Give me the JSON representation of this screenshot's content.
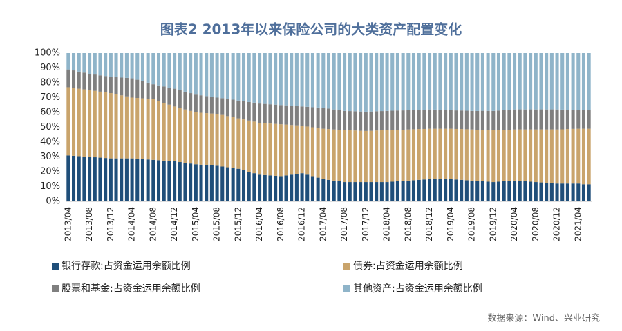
{
  "chart_data": {
    "type": "stacked_bar",
    "title": "图表2  2013年以来保险公司的大类资产配置变化",
    "source": "数据来源：Wind、兴业研究",
    "categories": [
      "2013/04",
      null,
      null,
      null,
      "2013/08",
      null,
      null,
      null,
      "2013/12",
      null,
      null,
      null,
      "2014/04",
      null,
      null,
      null,
      "2014/08",
      null,
      null,
      null,
      "2014/12",
      null,
      null,
      null,
      "2015/04",
      null,
      null,
      null,
      "2015/08",
      null,
      null,
      null,
      "2015/12",
      null,
      null,
      null,
      "2016/04",
      null,
      null,
      null,
      "2016/08",
      null,
      null,
      null,
      "2016/12",
      null,
      null,
      null,
      "2017/04",
      null,
      null,
      null,
      "2017/08",
      null,
      null,
      null,
      "2017/12",
      null,
      null,
      null,
      "2018/04",
      null,
      null,
      null,
      "2018/08",
      null,
      null,
      null,
      "2018/12",
      null,
      null,
      null,
      "2019/04",
      null,
      null,
      null,
      "2019/08",
      null,
      null,
      null,
      "2019/12",
      null,
      null,
      null,
      "2020/04",
      null,
      null,
      null,
      "2020/08",
      null,
      null,
      null,
      "2020/12",
      null,
      null,
      null,
      "2021/04",
      null,
      null
    ],
    "series": [
      {
        "name": "银行存款:占资金运用余额比例",
        "color": "#1f4e79",
        "values": [
          31,
          30.75,
          30.5,
          30.25,
          30,
          29.75,
          29.5,
          29.25,
          29,
          29,
          29,
          29,
          29,
          28.75,
          28.5,
          28.25,
          28,
          27.75,
          27.5,
          27.25,
          27,
          26.5,
          26,
          25.5,
          25,
          24.75,
          24.5,
          24.25,
          24,
          23.5,
          23,
          22.5,
          22,
          21,
          20,
          19,
          18,
          17.75,
          17.5,
          17.25,
          17,
          17.5,
          18,
          18.5,
          19,
          18,
          17,
          16,
          15,
          14.5,
          14,
          13.5,
          13,
          13,
          13,
          13,
          13,
          13,
          13,
          13,
          13,
          13.25,
          13.5,
          13.75,
          14,
          14.25,
          14.5,
          14.75,
          15,
          15,
          15,
          15,
          15,
          14.75,
          14.5,
          14.25,
          14,
          13.75,
          13.5,
          13.25,
          13,
          13.25,
          13.5,
          13.75,
          14,
          13.75,
          13.5,
          13.25,
          13,
          12.75,
          12.5,
          12.25,
          12,
          12,
          12,
          12,
          12,
          11.5,
          11.5
        ]
      },
      {
        "name": "债券:占资金运用余额比例",
        "color": "#c9a46c",
        "values": [
          46,
          45.8,
          45.5,
          45.3,
          45,
          44.8,
          44.5,
          44.3,
          44,
          43.3,
          42.5,
          41.8,
          41,
          41,
          41,
          41,
          41,
          40,
          39,
          38,
          37,
          36.5,
          36,
          35.5,
          35,
          35,
          35,
          35,
          35,
          34.8,
          34.5,
          34.3,
          34,
          34.3,
          34.5,
          34.8,
          35,
          35,
          35,
          35,
          35,
          34.3,
          33.5,
          32.8,
          32,
          32.5,
          33,
          33.5,
          34,
          34.3,
          34.5,
          34.8,
          35,
          34.9,
          34.8,
          34.6,
          34.5,
          34.6,
          34.8,
          34.9,
          35,
          34.9,
          34.8,
          34.6,
          34.5,
          34.4,
          34.3,
          34.1,
          34,
          34,
          34,
          34,
          34,
          34.1,
          34.3,
          34.4,
          34.5,
          34.6,
          34.8,
          34.9,
          35,
          34.9,
          34.8,
          34.6,
          34.5,
          34.8,
          35,
          35.3,
          35.5,
          35.8,
          36,
          36.3,
          36.5,
          36.6,
          36.8,
          36.9,
          37,
          37.5,
          37.5
        ]
      },
      {
        "name": "股票和基金:占资金运用余额比例",
        "color": "#7f7f7f",
        "values": [
          12,
          11.8,
          11.5,
          11.3,
          11,
          11,
          11,
          11,
          11,
          11.5,
          12,
          12.5,
          13,
          12.3,
          11.5,
          10.8,
          10,
          10.5,
          11,
          11.5,
          12,
          12,
          12,
          12,
          12,
          11.8,
          11.5,
          11.3,
          11,
          11.3,
          11.5,
          11.8,
          12,
          12.3,
          12.5,
          12.8,
          13,
          13,
          13,
          13,
          13,
          13,
          13,
          13,
          13,
          13.3,
          13.5,
          13.8,
          14,
          13.8,
          13.5,
          13.3,
          13,
          13,
          13,
          13,
          13,
          13,
          13,
          13,
          13,
          13,
          13,
          13,
          13,
          13,
          13,
          13,
          13,
          12.9,
          12.8,
          12.6,
          12.5,
          12.5,
          12.5,
          12.5,
          12.5,
          12.6,
          12.8,
          12.9,
          13,
          13.1,
          13.3,
          13.4,
          13.5,
          13.5,
          13.5,
          13.5,
          13.5,
          13.5,
          13.5,
          13.5,
          13.5,
          13.3,
          13,
          12.8,
          12.5,
          12.5,
          12.5
        ]
      },
      {
        "name": "其他资产:占资金运用余额比例",
        "color": "#8fb4c9",
        "values": [
          11,
          11.65,
          12.5,
          13.15,
          14,
          14.45,
          15,
          15.45,
          16,
          16.2,
          16.5,
          16.7,
          17,
          17.95,
          19,
          19.95,
          21,
          21.75,
          22.5,
          23.25,
          24,
          25,
          26,
          27,
          28,
          28.45,
          29,
          29.45,
          30,
          30.4,
          31,
          31.4,
          32,
          32.4,
          33,
          33.4,
          34,
          34.25,
          34.5,
          34.75,
          35,
          35.2,
          35.5,
          35.7,
          36,
          36.2,
          36.5,
          36.7,
          37,
          37.4,
          38,
          38.4,
          39,
          39.1,
          39.2,
          39.4,
          39.5,
          39.4,
          39.2,
          39.1,
          39,
          38.85,
          38.7,
          38.65,
          38.5,
          38.35,
          38.2,
          38.15,
          38,
          38.1,
          38.2,
          38.4,
          38.5,
          38.65,
          38.7,
          38.85,
          39,
          39.05,
          38.9,
          38.95,
          39,
          38.75,
          38.4,
          38.25,
          38,
          37.95,
          38,
          37.95,
          38,
          37.95,
          38,
          37.95,
          38,
          38.1,
          38.2,
          38.3,
          38.5,
          38.5,
          38.5
        ]
      }
    ],
    "ylim": [
      0,
      100
    ],
    "yticks": [
      {
        "value": 0,
        "label": "0%"
      },
      {
        "value": 10,
        "label": "10%"
      },
      {
        "value": 20,
        "label": "20%"
      },
      {
        "value": 30,
        "label": "30%"
      },
      {
        "value": 40,
        "label": "40%"
      },
      {
        "value": 50,
        "label": "50%"
      },
      {
        "value": 60,
        "label": "60%"
      },
      {
        "value": 70,
        "label": "70%"
      },
      {
        "value": 80,
        "label": "80%"
      },
      {
        "value": 90,
        "label": "90%"
      },
      {
        "value": 100,
        "label": "100%"
      }
    ]
  }
}
